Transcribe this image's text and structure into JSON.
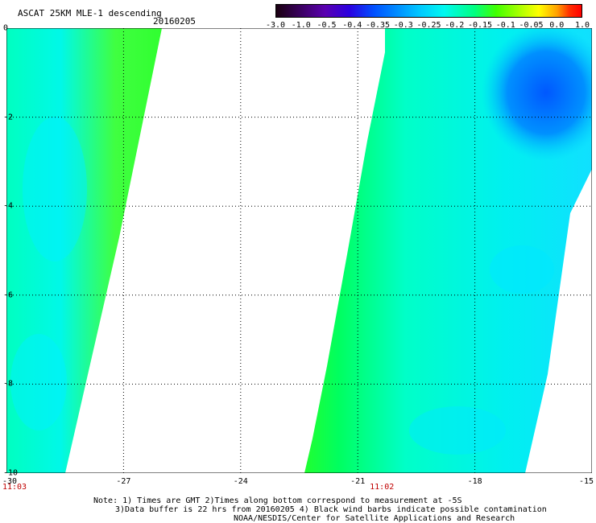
{
  "header": {
    "title": "ASCAT 25KM MLE-1 descending",
    "date": "20160205"
  },
  "colorbar": {
    "labels": [
      "-3.0",
      "-1.0",
      "-0.5",
      "-0.4",
      "-0.35",
      "-0.3",
      "-0.25",
      "-0.2",
      "-0.15",
      "-0.1",
      "-0.05",
      "0.0",
      "1.0"
    ]
  },
  "axes": {
    "x_labels": [
      "-30",
      "-27",
      "-24",
      "-21",
      "-18",
      "-15"
    ],
    "y_labels": [
      "0",
      "-2",
      "-4",
      "-6",
      "-8",
      "-10"
    ]
  },
  "times": [
    {
      "label": "11:03",
      "lon": -30
    },
    {
      "label": "11:02",
      "lon": -21
    }
  ],
  "notes": {
    "line1": "Note: 1) Times are GMT 2)Times along bottom correspond to measurement at -5S",
    "line2": "3)Data buffer is 22 hrs from 20160205 4) Black wind barbs indicate possible contamination",
    "line3": "NOAA/NESDIS/Center for Satellite Applications and Research"
  },
  "colors": {
    "green": "#00ff50",
    "cyan": "#00ffe0",
    "blue": "#0080ff"
  }
}
